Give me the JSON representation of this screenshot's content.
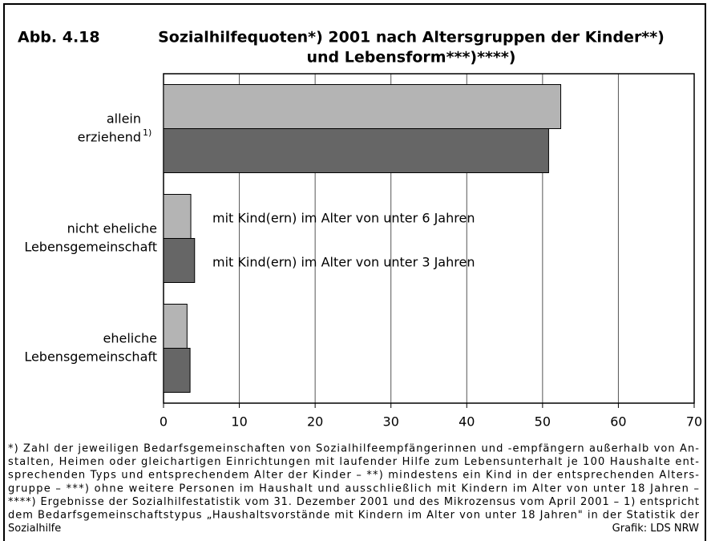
{
  "chart_data": {
    "type": "bar",
    "orientation": "horizontal",
    "figure_number": "Abb. 4.18",
    "title": [
      "Sozialhilfequoten*) 2001 nach Altersgruppen der Kinder**)",
      "und Lebensform***)****)"
    ],
    "categories": [
      {
        "lines": [
          "allein",
          "erziehend"
        ],
        "note": "1)"
      },
      {
        "lines": [
          "nicht eheliche",
          "Lebensgemeinschaft"
        ]
      },
      {
        "lines": [
          "eheliche",
          "Lebensgemeinschaft"
        ]
      }
    ],
    "series": [
      {
        "name": "mit Kind(ern) im Alter von unter 6 Jahren",
        "color": "#b4b4b4",
        "values": [
          52.4,
          3.6,
          3.1
        ]
      },
      {
        "name": "mit Kind(ern) im Alter von unter 3 Jahren",
        "color": "#666666",
        "values": [
          50.8,
          4.1,
          3.5
        ]
      }
    ],
    "xlim": [
      0,
      70
    ],
    "xticks": [
      0,
      10,
      20,
      30,
      40,
      50,
      60,
      70
    ],
    "grid": true,
    "footnote": [
      "*) Zahl der jeweiligen Bedarfsgemeinschaften von Sozialhilfeempfängerinnen und -empfängern außerhalb von An-",
      "stalten, Heimen oder gleichartigen Einrichtungen mit laufender Hilfe zum Lebensunterhalt je 100 Haushalte ent-",
      "sprechenden Typs und entsprechendem Alter der Kinder – **) mindestens ein Kind in der entsprechenden Alters-",
      "gruppe – ***) ohne weitere Personen im Haushalt und ausschließlich mit Kindern im Alter von unter 18 Jahren –",
      "****) Ergebnisse der Sozialhilfestatistik vom 31. Dezember 2001 und des Mikrozensus vom April 2001 – 1) entspricht",
      "dem Bedarfsgemeinschaftstypus „Haushaltsvorstände mit Kindern im Alter von unter 18 Jahren\" in der Statistik der",
      "Sozialhilfe"
    ],
    "source": "Grafik: LDS NRW"
  }
}
